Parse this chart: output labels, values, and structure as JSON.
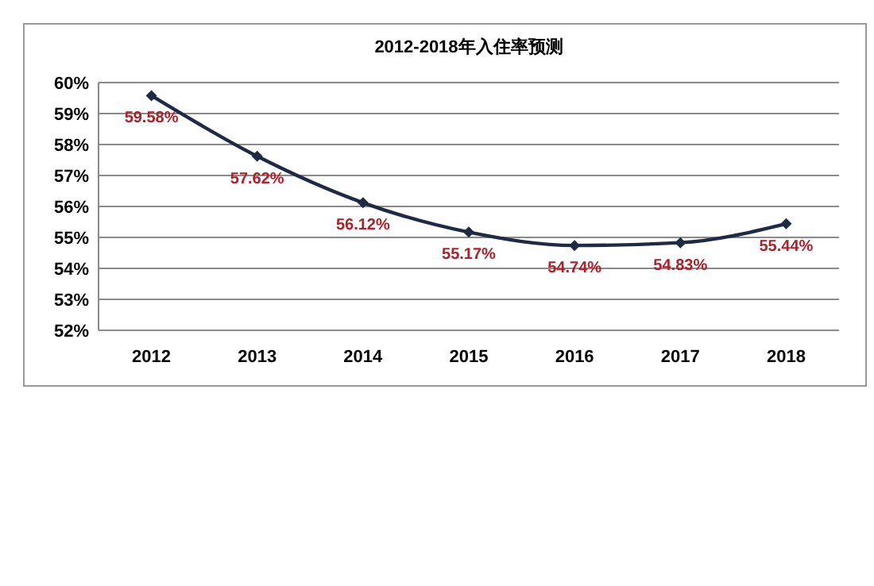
{
  "chart_data": {
    "type": "line",
    "title": "2012-2018年入住率预测",
    "categories": [
      "2012",
      "2013",
      "2014",
      "2015",
      "2016",
      "2017",
      "2018"
    ],
    "series": [
      {
        "color": "#1f2a44",
        "values": [
          59.58,
          57.62,
          56.12,
          55.17,
          54.74,
          54.83,
          55.44
        ],
        "value_labels": [
          "59.58%",
          "57.62%",
          "56.12%",
          "55.17%",
          "54.74%",
          "54.83%",
          "55.44%"
        ]
      }
    ],
    "ylim": [
      52,
      60
    ],
    "yticks": [
      {
        "value": 52,
        "label": "52%"
      },
      {
        "value": 53,
        "label": "53%"
      },
      {
        "value": 54,
        "label": "54%"
      },
      {
        "value": 55,
        "label": "55%"
      },
      {
        "value": 56,
        "label": "56%"
      },
      {
        "value": 57,
        "label": "57%"
      },
      {
        "value": 58,
        "label": "58%"
      },
      {
        "value": 59,
        "label": "59%"
      },
      {
        "value": 60,
        "label": "60%"
      }
    ],
    "grid": "y",
    "marker": "diamond",
    "line_style": "solid"
  }
}
